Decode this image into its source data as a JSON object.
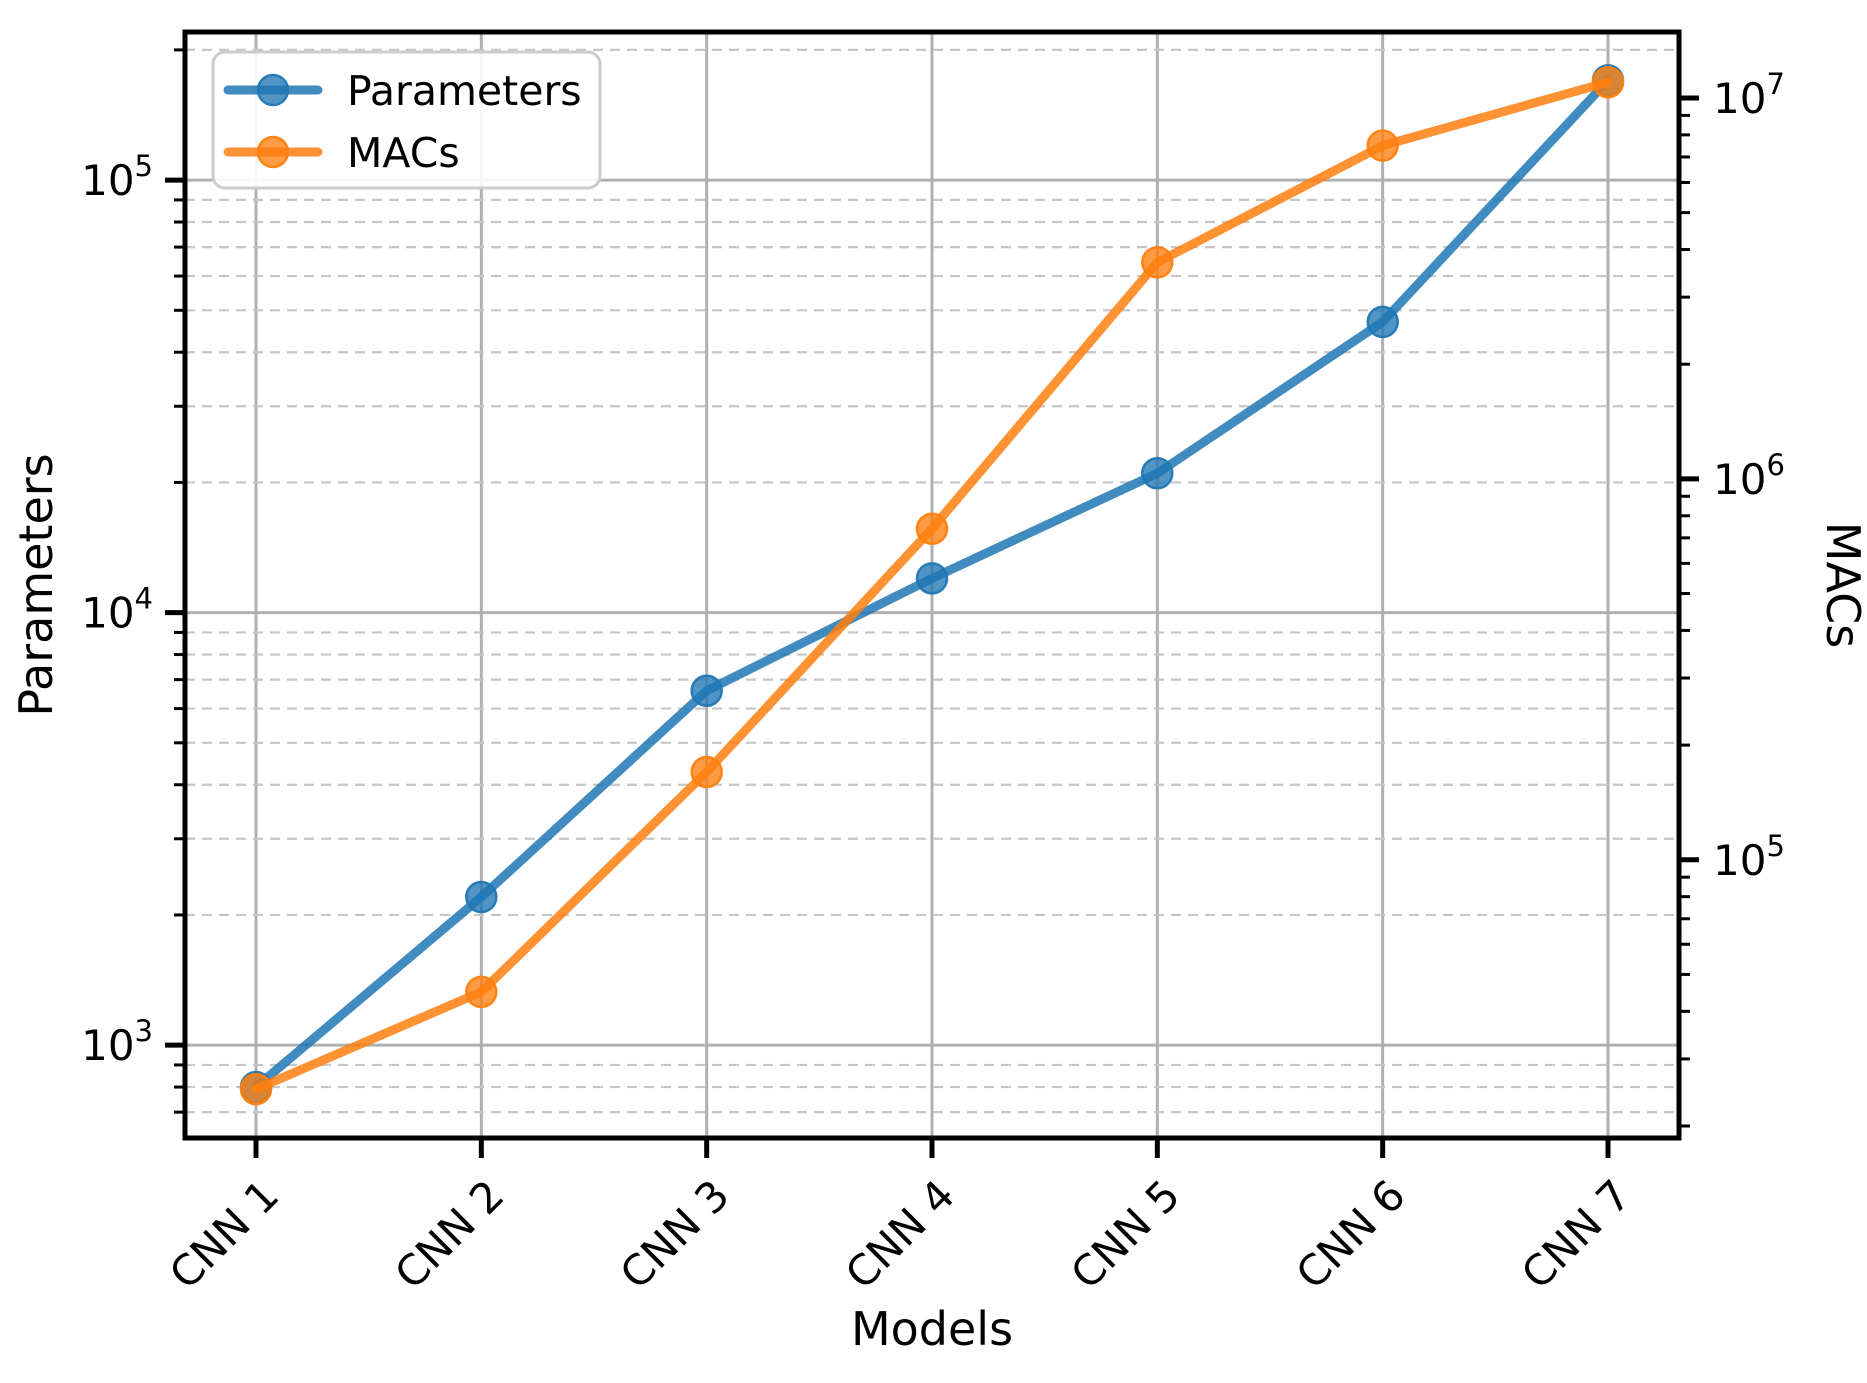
{
  "figure": {
    "background": "#ffffff"
  },
  "chart_data": {
    "type": "line",
    "title": "",
    "xlabel": "Models",
    "ylabel_left": "Parameters",
    "ylabel_right": "MACs",
    "categories": [
      "CNN 1",
      "CNN 2",
      "CNN 3",
      "CNN 4",
      "CNN 5",
      "CNN 6",
      "CNN 7"
    ],
    "series": [
      {
        "name": "Parameters",
        "axis": "left",
        "color": "#1f77b4",
        "marker": "circle",
        "values": [
          800,
          2200,
          6600,
          12000,
          21000,
          47000,
          170000
        ]
      },
      {
        "name": "MACs",
        "axis": "right",
        "color": "#ff7f0e",
        "marker": "circle",
        "values": [
          25000,
          45000,
          170000,
          740000,
          3700000,
          7500000,
          11000000
        ]
      }
    ],
    "axes": {
      "left": {
        "scale": "log",
        "lim": [
          610,
          220000
        ],
        "major_ticks": [
          1000,
          10000,
          100000
        ],
        "tick_label_base": "10",
        "tick_label_exponents": [
          3,
          4,
          5
        ]
      },
      "right": {
        "scale": "log",
        "lim": [
          18600,
          14900000
        ],
        "major_ticks": [
          100000,
          1000000,
          10000000
        ],
        "tick_label_base": "10",
        "tick_label_exponents": [
          5,
          6,
          7
        ]
      }
    },
    "grid": {
      "major": "solid",
      "minor": "dashed",
      "major_color": "#b0b0b0",
      "minor_color": "#c6c6c6"
    },
    "legend": {
      "position": "upper-left",
      "items": [
        "Parameters",
        "MACs"
      ]
    }
  }
}
